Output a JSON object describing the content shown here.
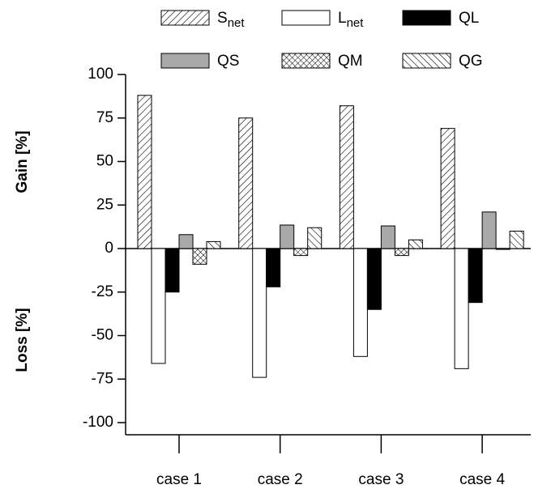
{
  "chart_data": {
    "type": "bar",
    "y_label_top": "Gain [%]",
    "y_label_bottom": "Loss [%]",
    "categories": [
      "case 1",
      "case 2",
      "case 3",
      "case 4"
    ],
    "series": [
      {
        "name": "S",
        "name_sub": "net",
        "color": "#000000",
        "pattern": "hatch-right",
        "values": [
          88,
          75,
          82,
          69
        ]
      },
      {
        "name": "L",
        "name_sub": "net",
        "color": "#ffffff",
        "pattern": "solid",
        "values": [
          -66,
          -74,
          -62,
          -69
        ]
      },
      {
        "name": "QL",
        "color": "#000000",
        "pattern": "solid",
        "values": [
          -25,
          -22,
          -35,
          -31
        ]
      },
      {
        "name": "QS",
        "color": "#a9a9a9",
        "pattern": "solid",
        "values": [
          8,
          13.5,
          13,
          21
        ]
      },
      {
        "name": "QM",
        "color": "#000000",
        "pattern": "cross",
        "values": [
          -9,
          -4,
          -4,
          -0.5
        ]
      },
      {
        "name": "QG",
        "color": "#000000",
        "pattern": "hatch-left",
        "values": [
          4,
          12,
          5,
          10
        ]
      }
    ],
    "ylim": [
      -100,
      100
    ],
    "yticks": [
      -100,
      -75,
      -50,
      -25,
      0,
      25,
      50,
      75,
      100
    ],
    "legend": "top"
  }
}
